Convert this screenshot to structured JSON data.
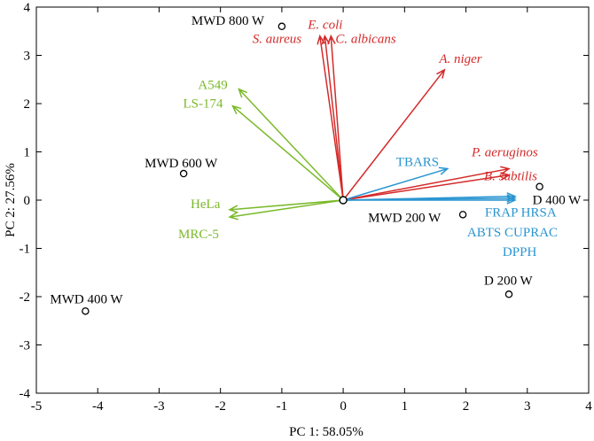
{
  "chart_data": {
    "type": "scatter",
    "subtype": "pca-biplot",
    "title": "",
    "xlabel": "PC 1: 58.05%",
    "ylabel": "PC 2: 27.56%",
    "xlim": [
      -5,
      4
    ],
    "ylim": [
      -4,
      4
    ],
    "x_ticks": [
      -5,
      -4,
      -3,
      -2,
      -1,
      0,
      1,
      2,
      3,
      4
    ],
    "y_ticks": [
      -4,
      -3,
      -2,
      -1,
      0,
      1,
      2,
      3,
      4
    ],
    "grid": false,
    "colors": {
      "axes": "#000000",
      "cytotoxic": "#7ab929",
      "antimicrobial": "#d42a2a",
      "antioxidant": "#2a95d1"
    },
    "origin": {
      "x": 0,
      "y": 0
    },
    "points": [
      {
        "label": "MWD 800 W",
        "x": -1.0,
        "y": 3.6
      },
      {
        "label": "MWD 600 W",
        "x": -2.6,
        "y": 0.55
      },
      {
        "label": "MWD 400 W",
        "x": -4.2,
        "y": -2.3
      },
      {
        "label": "MWD 200 W",
        "x": 1.95,
        "y": -0.3
      },
      {
        "label": "D 400 W",
        "x": 3.2,
        "y": 0.28
      },
      {
        "label": "D 200 W",
        "x": 2.7,
        "y": -1.95
      }
    ],
    "vector_groups": [
      {
        "group": "cytotoxic",
        "color": "#7ab929",
        "vectors": [
          {
            "label": "A549",
            "x": -1.7,
            "y": 2.3,
            "italic": false
          },
          {
            "label": "LS-174",
            "x": -1.8,
            "y": 1.95,
            "italic": false
          },
          {
            "label": "HeLa",
            "x": -1.85,
            "y": -0.2,
            "italic": false
          },
          {
            "label": "MRC-5",
            "x": -1.85,
            "y": -0.35,
            "italic": false
          }
        ]
      },
      {
        "group": "antimicrobial",
        "color": "#d42a2a",
        "vectors": [
          {
            "label": "E. coli",
            "x": -0.2,
            "y": 3.4,
            "italic": true
          },
          {
            "label": "S. aureus",
            "x": -0.38,
            "y": 3.4,
            "italic": true
          },
          {
            "label": "C. albicans",
            "x": -0.3,
            "y": 3.4,
            "italic": true
          },
          {
            "label": "A. niger",
            "x": 1.65,
            "y": 2.7,
            "italic": true
          },
          {
            "label": "P. aeruginos",
            "x": 2.7,
            "y": 0.65,
            "italic": true
          },
          {
            "label": "B. subtilis",
            "x": 2.7,
            "y": 0.52,
            "italic": true
          }
        ]
      },
      {
        "group": "antioxidant",
        "color": "#2a95d1",
        "vectors": [
          {
            "label": "TBARS",
            "x": 1.7,
            "y": 0.65,
            "italic": false
          },
          {
            "label": "FRAP HRSA",
            "x": 2.8,
            "y": 0.08,
            "italic": false
          },
          {
            "label": "ABTS CUPRAC",
            "x": 2.8,
            "y": 0.04,
            "italic": false
          },
          {
            "label": "DPPH",
            "x": 2.8,
            "y": 0.0,
            "italic": false
          }
        ]
      }
    ]
  }
}
